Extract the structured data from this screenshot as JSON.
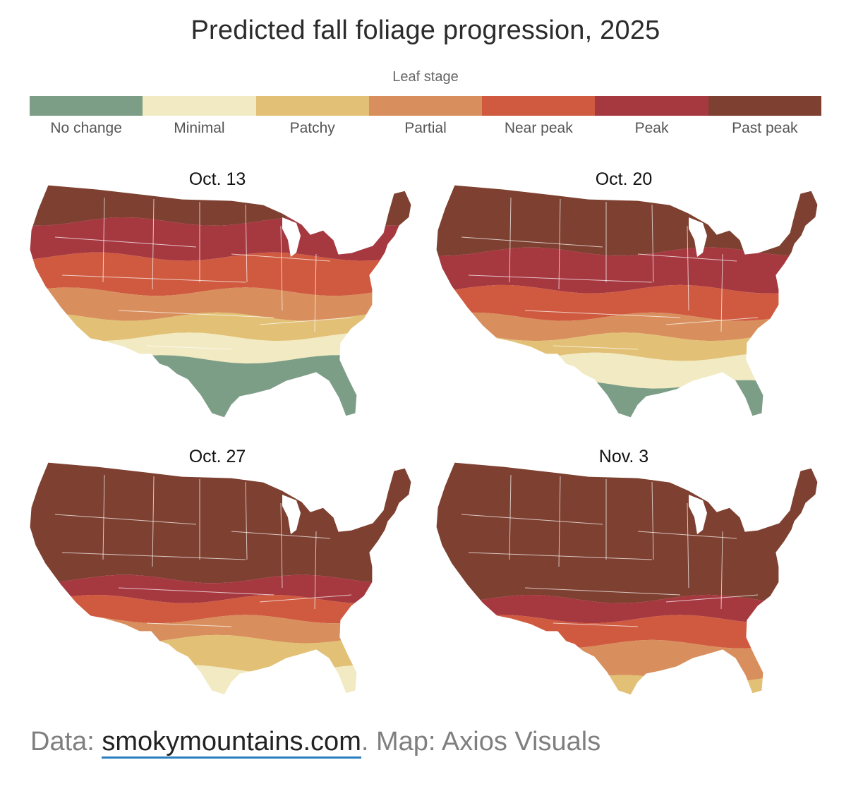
{
  "title": "Predicted fall foliage progression, 2025",
  "legend": {
    "title": "Leaf stage",
    "items": [
      {
        "label": "No change",
        "color": "#7d9e86"
      },
      {
        "label": "Minimal",
        "color": "#f1eac2"
      },
      {
        "label": "Patchy",
        "color": "#e2c176"
      },
      {
        "label": "Partial",
        "color": "#d88f5d"
      },
      {
        "label": "Near peak",
        "color": "#cf5a40"
      },
      {
        "label": "Peak",
        "color": "#a63840"
      },
      {
        "label": "Past peak",
        "color": "#7e4030"
      }
    ]
  },
  "maps": [
    {
      "date": "Oct. 13",
      "bands": [
        {
          "stage": "Past peak",
          "from": 0.0,
          "to": 0.18
        },
        {
          "stage": "Peak",
          "from": 0.18,
          "to": 0.32
        },
        {
          "stage": "Near peak",
          "from": 0.32,
          "to": 0.46
        },
        {
          "stage": "Partial",
          "from": 0.46,
          "to": 0.56
        },
        {
          "stage": "Patchy",
          "from": 0.56,
          "to": 0.64
        },
        {
          "stage": "Minimal",
          "from": 0.64,
          "to": 0.73
        },
        {
          "stage": "No change",
          "from": 0.73,
          "to": 1.0
        }
      ]
    },
    {
      "date": "Oct. 20",
      "bands": [
        {
          "stage": "Past peak",
          "from": 0.0,
          "to": 0.3
        },
        {
          "stage": "Peak",
          "from": 0.3,
          "to": 0.45
        },
        {
          "stage": "Near peak",
          "from": 0.45,
          "to": 0.56
        },
        {
          "stage": "Partial",
          "from": 0.56,
          "to": 0.64
        },
        {
          "stage": "Patchy",
          "from": 0.64,
          "to": 0.72
        },
        {
          "stage": "Minimal",
          "from": 0.72,
          "to": 0.83
        },
        {
          "stage": "No change",
          "from": 0.83,
          "to": 1.0
        }
      ]
    },
    {
      "date": "Oct. 27",
      "bands": [
        {
          "stage": "Past peak",
          "from": 0.0,
          "to": 0.5
        },
        {
          "stage": "Peak",
          "from": 0.5,
          "to": 0.58
        },
        {
          "stage": "Near peak",
          "from": 0.58,
          "to": 0.66
        },
        {
          "stage": "Partial",
          "from": 0.66,
          "to": 0.74
        },
        {
          "stage": "Patchy",
          "from": 0.74,
          "to": 0.86
        },
        {
          "stage": "Minimal",
          "from": 0.86,
          "to": 1.0
        }
      ]
    },
    {
      "date": "Nov. 3",
      "bands": [
        {
          "stage": "Past peak",
          "from": 0.0,
          "to": 0.58
        },
        {
          "stage": "Peak",
          "from": 0.58,
          "to": 0.66
        },
        {
          "stage": "Near peak",
          "from": 0.66,
          "to": 0.76
        },
        {
          "stage": "Partial",
          "from": 0.76,
          "to": 0.9
        },
        {
          "stage": "Patchy",
          "from": 0.9,
          "to": 1.0
        }
      ]
    }
  ],
  "footer": {
    "prefix": "Data: ",
    "link_text": "smokymountains.com",
    "suffix": ". Map: Axios Visuals",
    "link_color": "#2a7fc1"
  }
}
